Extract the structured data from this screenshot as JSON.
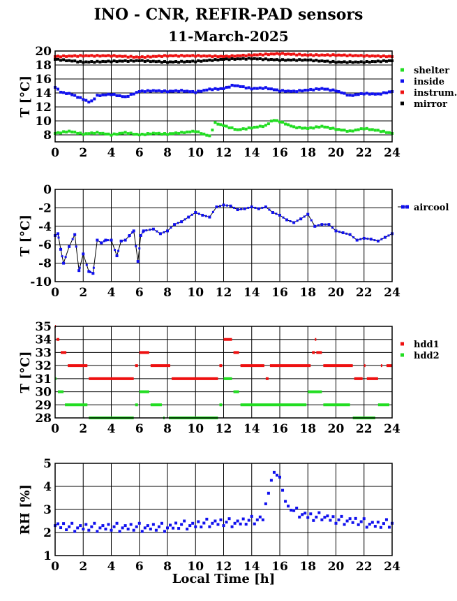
{
  "title": "INO - CNR, REFIR-PAD sensors",
  "subtitle": "11-March-2025",
  "colors": {
    "green": "#22dd22",
    "blue": "#1010ee",
    "red": "#ee1010",
    "black": "#000000"
  },
  "chart_data": [
    {
      "type": "scatter",
      "ylabel": "T [°C]",
      "xlim": [
        0,
        24
      ],
      "ylim": [
        7,
        20
      ],
      "xticks": [
        0,
        2,
        4,
        6,
        8,
        10,
        12,
        14,
        16,
        18,
        20,
        22,
        24
      ],
      "yticks": [
        8,
        10,
        12,
        14,
        16,
        18,
        20
      ],
      "grid": true,
      "legend_position": "right",
      "series": [
        {
          "name": "shelter",
          "color": "green",
          "step": 0.2,
          "mark": "dot",
          "x": [
            0,
            1,
            2,
            3,
            4,
            5,
            6,
            7,
            8,
            9,
            10,
            11,
            11.4,
            12,
            13,
            14,
            15,
            15.5,
            16,
            17,
            18,
            19,
            20,
            21,
            22,
            23,
            24
          ],
          "y": [
            8.2,
            8.5,
            8.1,
            8.3,
            8.0,
            8.3,
            8.0,
            8.2,
            8.1,
            8.3,
            8.5,
            7.8,
            9.7,
            9.3,
            8.7,
            9.0,
            9.3,
            10.1,
            9.9,
            9.1,
            8.9,
            9.2,
            8.8,
            8.5,
            8.9,
            8.6,
            8.2
          ]
        },
        {
          "name": "inside",
          "color": "blue",
          "step": 0.2,
          "mark": "dot",
          "x": [
            0,
            0.5,
            1,
            2,
            2.5,
            3,
            4,
            5,
            6,
            7,
            8,
            9,
            10,
            11,
            12,
            12.7,
            14,
            15,
            16,
            17,
            18,
            19,
            20,
            21,
            22,
            23,
            24
          ],
          "y": [
            14.8,
            14.0,
            13.9,
            13.1,
            12.6,
            13.6,
            13.8,
            13.4,
            14.2,
            14.3,
            14.2,
            14.3,
            14.1,
            14.5,
            14.6,
            15.1,
            14.6,
            14.7,
            14.3,
            14.2,
            14.4,
            14.6,
            14.3,
            13.6,
            13.9,
            13.8,
            14.2
          ]
        },
        {
          "name": "instrum.",
          "color": "red",
          "step": 0.2,
          "mark": "dot",
          "x": [
            0,
            2,
            4,
            6,
            8,
            10,
            12,
            14,
            16,
            18,
            20,
            22,
            24
          ],
          "y": [
            19.2,
            19.3,
            19.3,
            19.1,
            19.3,
            19.3,
            19.2,
            19.4,
            19.6,
            19.4,
            19.4,
            19.3,
            19.2
          ]
        },
        {
          "name": "mirror",
          "color": "black",
          "step": 0.2,
          "mark": "dot",
          "x": [
            0,
            2,
            4,
            6,
            8,
            10,
            12,
            14,
            16,
            18,
            20,
            22,
            24
          ],
          "y": [
            18.8,
            18.4,
            18.5,
            18.6,
            18.4,
            18.5,
            18.8,
            18.9,
            18.7,
            18.7,
            18.4,
            18.4,
            18.6
          ]
        }
      ]
    },
    {
      "type": "line",
      "ylabel": "T [°C]",
      "xlim": [
        0,
        24
      ],
      "ylim": [
        -10,
        0
      ],
      "xticks": [
        0,
        2,
        4,
        6,
        8,
        10,
        12,
        14,
        16,
        18,
        20,
        22,
        24
      ],
      "yticks": [
        0,
        -2,
        -4,
        -6,
        -8,
        -10
      ],
      "grid": true,
      "legend_position": "right",
      "series": [
        {
          "name": "aircool",
          "color": "blue",
          "mark": "line",
          "x": [
            0,
            0.2,
            0.4,
            0.6,
            1,
            1.4,
            1.7,
            2,
            2.4,
            2.7,
            3,
            3.3,
            3.6,
            4,
            4.4,
            4.7,
            5,
            5.3,
            5.6,
            5.9,
            6.1,
            6.3,
            7,
            7.5,
            8,
            8.5,
            9,
            9.5,
            10,
            10.5,
            11,
            11.5,
            12,
            12.5,
            13,
            13.5,
            14,
            14.5,
            15,
            15.5,
            16,
            16.5,
            17,
            17.5,
            18,
            18.5,
            19,
            19.5,
            20,
            20.5,
            21,
            21.5,
            22,
            22.5,
            23,
            23.5,
            24
          ],
          "y": [
            -5.0,
            -4.8,
            -6.5,
            -8.0,
            -6.2,
            -4.9,
            -8.8,
            -7.0,
            -8.9,
            -9.1,
            -5.5,
            -5.8,
            -5.5,
            -5.5,
            -7.2,
            -5.6,
            -5.5,
            -5.0,
            -4.5,
            -7.8,
            -5.0,
            -4.5,
            -4.3,
            -4.8,
            -4.5,
            -3.8,
            -3.5,
            -3.0,
            -2.5,
            -2.8,
            -3.0,
            -1.9,
            -1.7,
            -1.8,
            -2.2,
            -2.1,
            -1.9,
            -2.1,
            -1.9,
            -2.5,
            -2.8,
            -3.3,
            -3.6,
            -3.2,
            -2.7,
            -4.0,
            -3.8,
            -3.8,
            -4.5,
            -4.7,
            -4.9,
            -5.5,
            -5.3,
            -5.4,
            -5.6,
            -5.2,
            -4.8
          ]
        }
      ]
    },
    {
      "type": "scatter",
      "ylabel": "T [°C]",
      "xlim": [
        0,
        24
      ],
      "ylim": [
        28,
        35
      ],
      "xticks": [
        0,
        2,
        4,
        6,
        8,
        10,
        12,
        14,
        16,
        18,
        20,
        22,
        24
      ],
      "yticks": [
        28,
        29,
        30,
        31,
        32,
        33,
        34,
        35
      ],
      "grid": true,
      "legend_position": "right",
      "series": [
        {
          "name": "hdd1",
          "color": "red",
          "mark": "dash",
          "segments": [
            [
              0,
              0.05,
              35
            ],
            [
              0.1,
              0.3,
              34
            ],
            [
              0.4,
              0.8,
              33
            ],
            [
              0.9,
              2.3,
              32
            ],
            [
              2.4,
              5.6,
              31
            ],
            [
              5.7,
              5.9,
              32
            ],
            [
              6.0,
              6.7,
              33
            ],
            [
              6.8,
              8.2,
              32
            ],
            [
              8.3,
              11.6,
              31
            ],
            [
              11.7,
              11.9,
              32
            ],
            [
              12.0,
              12.6,
              34
            ],
            [
              12.7,
              13.1,
              33
            ],
            [
              13.2,
              14.9,
              32
            ],
            [
              15.0,
              15.2,
              31
            ],
            [
              15.3,
              18.2,
              32
            ],
            [
              18.3,
              18.5,
              33
            ],
            [
              18.5,
              18.6,
              34
            ],
            [
              18.6,
              19.0,
              33
            ],
            [
              19.1,
              21.2,
              32
            ],
            [
              21.3,
              21.9,
              31
            ],
            [
              22.0,
              22.1,
              32
            ],
            [
              22.2,
              23.0,
              31
            ],
            [
              23.2,
              23.3,
              32
            ],
            [
              23.6,
              24.0,
              32
            ]
          ]
        },
        {
          "name": "hdd2",
          "color": "green",
          "mark": "dash",
          "segments": [
            [
              0,
              0.1,
              31
            ],
            [
              0.2,
              0.6,
              30
            ],
            [
              0.7,
              2.3,
              29
            ],
            [
              2.4,
              5.6,
              28
            ],
            [
              5.7,
              5.9,
              29
            ],
            [
              6.0,
              6.7,
              30
            ],
            [
              6.8,
              7.6,
              29
            ],
            [
              7.7,
              7.8,
              28
            ],
            [
              8.1,
              11.6,
              28
            ],
            [
              11.7,
              11.9,
              29
            ],
            [
              12.0,
              12.6,
              31
            ],
            [
              12.7,
              13.1,
              30
            ],
            [
              13.2,
              17.9,
              29
            ],
            [
              18.0,
              19.0,
              30
            ],
            [
              19.1,
              21.0,
              29
            ],
            [
              21.2,
              22.8,
              28
            ],
            [
              23.0,
              23.8,
              29
            ]
          ]
        }
      ]
    },
    {
      "type": "scatter",
      "ylabel": "RH [%]",
      "xlabel": "Local Time [h]",
      "xlim": [
        0,
        24
      ],
      "ylim": [
        1,
        5
      ],
      "xticks": [
        0,
        2,
        4,
        6,
        8,
        10,
        12,
        14,
        16,
        18,
        20,
        22,
        24
      ],
      "yticks": [
        1,
        2,
        3,
        4,
        5
      ],
      "grid": true,
      "series": [
        {
          "color": "blue",
          "step": 0.2,
          "mark": "dot",
          "scatterjitter": true,
          "x": [
            0,
            1,
            2,
            3,
            4,
            5,
            6,
            7,
            8,
            9,
            10,
            11,
            12,
            13,
            14,
            14.8,
            15.0,
            15.3,
            15.5,
            15.7,
            16.0,
            16.3,
            16.6,
            17,
            17.5,
            18,
            18.5,
            19,
            20,
            21,
            22,
            23,
            24
          ],
          "y": [
            2.3,
            2.2,
            2.2,
            2.2,
            2.2,
            2.2,
            2.2,
            2.2,
            2.2,
            2.3,
            2.3,
            2.4,
            2.4,
            2.4,
            2.5,
            2.6,
            3.2,
            4.0,
            4.5,
            4.6,
            4.4,
            3.5,
            3.1,
            2.9,
            2.8,
            2.7,
            2.6,
            2.7,
            2.5,
            2.5,
            2.4,
            2.3,
            2.4
          ]
        }
      ]
    }
  ],
  "legends": [
    [
      "shelter",
      "inside",
      "instrum.",
      "mirror"
    ],
    [
      "aircool"
    ],
    [
      "hdd1",
      "hdd2"
    ],
    []
  ]
}
